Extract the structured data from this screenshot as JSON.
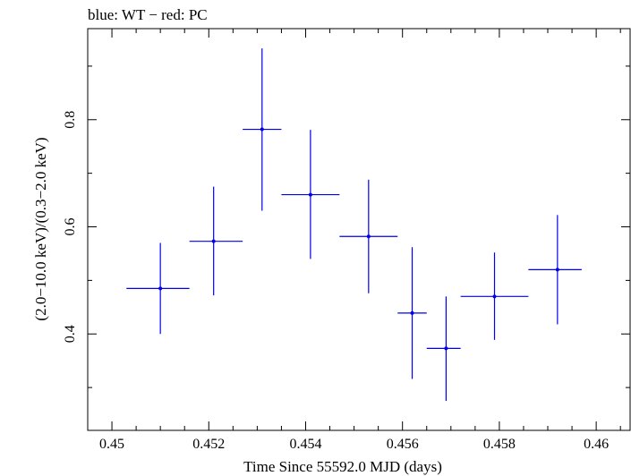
{
  "chart_data": {
    "type": "scatter",
    "title": "blue: WT − red: PC",
    "xlabel": "Time Since 55592.0 MJD (days)",
    "ylabel": "(2.0−10.0 keV)/(0.3−2.0 keV)",
    "xlim": [
      0.4495,
      0.4607
    ],
    "ylim": [
      0.22,
      0.97
    ],
    "x_ticks_major": [
      0.45,
      0.452,
      0.454,
      0.456,
      0.458,
      0.46
    ],
    "x_tick_labels": [
      "0.45",
      "0.452",
      "0.454",
      "0.456",
      "0.458",
      "0.46"
    ],
    "x_ticks_minor": [
      0.4505,
      0.451,
      0.4515,
      0.4525,
      0.453,
      0.4535,
      0.4545,
      0.455,
      0.4555,
      0.4565,
      0.457,
      0.4575,
      0.4585,
      0.459,
      0.4595,
      0.4605
    ],
    "y_ticks_major": [
      0.4,
      0.6,
      0.8
    ],
    "y_tick_labels": [
      "0.4",
      "0.6",
      "0.8"
    ],
    "y_ticks_minor": [
      0.3,
      0.5,
      0.7,
      0.9
    ],
    "grid": false,
    "series": [
      {
        "color": "#0000ee",
        "points": [
          {
            "x": 0.451,
            "xlo": 0.4503,
            "xhi": 0.4516,
            "y": 0.485,
            "ylo": 0.4,
            "yhi": 0.57
          },
          {
            "x": 0.4521,
            "xlo": 0.4516,
            "xhi": 0.4527,
            "y": 0.573,
            "ylo": 0.472,
            "yhi": 0.675
          },
          {
            "x": 0.4531,
            "xlo": 0.4527,
            "xhi": 0.4535,
            "y": 0.782,
            "ylo": 0.63,
            "yhi": 0.933
          },
          {
            "x": 0.4541,
            "xlo": 0.4535,
            "xhi": 0.4547,
            "y": 0.66,
            "ylo": 0.54,
            "yhi": 0.781
          },
          {
            "x": 0.4553,
            "xlo": 0.4547,
            "xhi": 0.4559,
            "y": 0.582,
            "ylo": 0.476,
            "yhi": 0.688
          },
          {
            "x": 0.4562,
            "xlo": 0.4559,
            "xhi": 0.4565,
            "y": 0.439,
            "ylo": 0.316,
            "yhi": 0.562
          },
          {
            "x": 0.4569,
            "xlo": 0.4565,
            "xhi": 0.4572,
            "y": 0.373,
            "ylo": 0.275,
            "yhi": 0.47
          },
          {
            "x": 0.4579,
            "xlo": 0.4572,
            "xhi": 0.4586,
            "y": 0.47,
            "ylo": 0.389,
            "yhi": 0.552
          },
          {
            "x": 0.4592,
            "xlo": 0.4586,
            "xhi": 0.4597,
            "y": 0.52,
            "ylo": 0.418,
            "yhi": 0.622
          }
        ]
      }
    ]
  }
}
